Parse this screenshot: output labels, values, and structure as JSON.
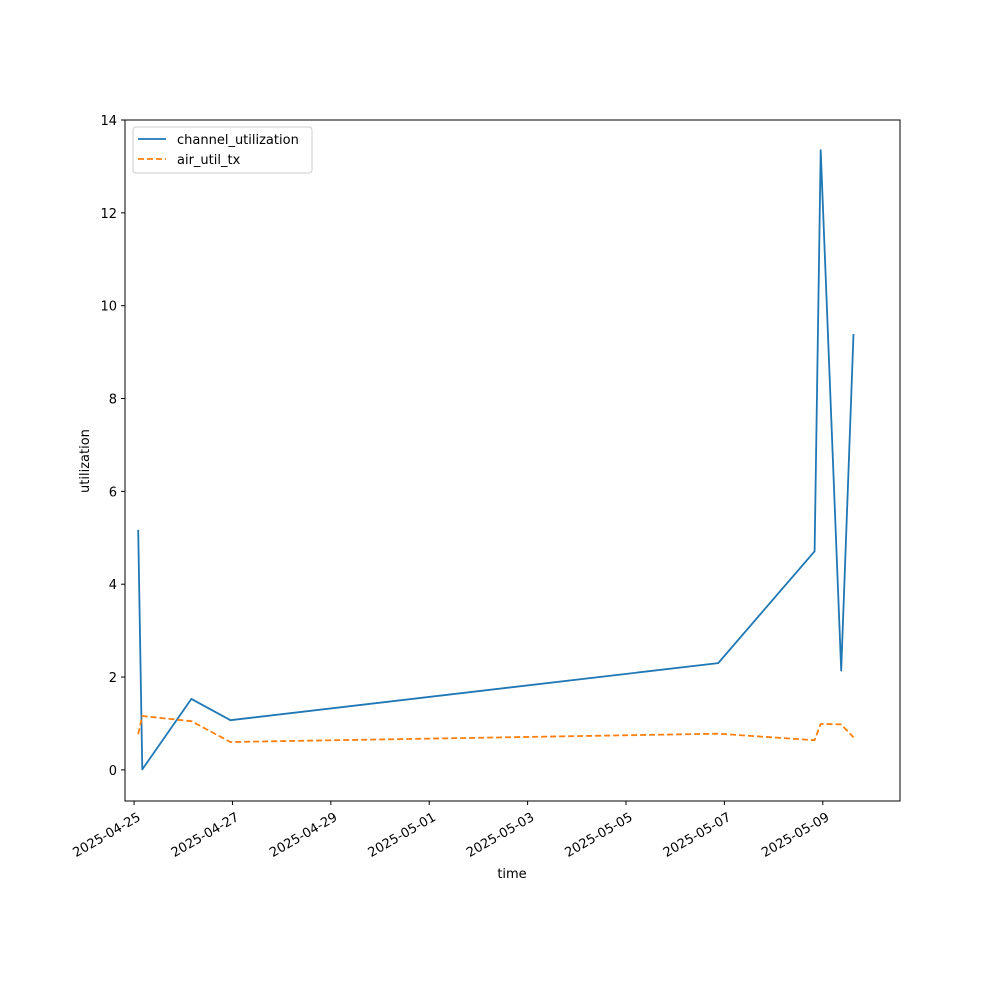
{
  "chart_data": {
    "type": "line",
    "title": "",
    "xlabel": "time",
    "ylabel": "utilization",
    "x_type": "date",
    "xlim": [
      "2025-04-24T19:35",
      "2025-05-10T13:40"
    ],
    "ylim": [
      -0.67,
      14
    ],
    "x_ticks": [
      "2025-04-25",
      "2025-04-27",
      "2025-04-29",
      "2025-05-01",
      "2025-05-03",
      "2025-05-05",
      "2025-05-07",
      "2025-05-09"
    ],
    "y_ticks": [
      0,
      2,
      4,
      6,
      8,
      10,
      12,
      14
    ],
    "grid": false,
    "legend_position": "top-left",
    "series": [
      {
        "name": "channel_utilization",
        "color": "#1f77b4",
        "style": "solid",
        "points": [
          {
            "x": "2025-04-25T02:00",
            "y": 5.17
          },
          {
            "x": "2025-04-25T04:00",
            "y": 0.01
          },
          {
            "x": "2025-04-26T04:00",
            "y": 1.53
          },
          {
            "x": "2025-04-26T23:00",
            "y": 1.07
          },
          {
            "x": "2025-05-06T21:00",
            "y": 2.3
          },
          {
            "x": "2025-05-08T20:00",
            "y": 4.71
          },
          {
            "x": "2025-05-08T23:00",
            "y": 13.35
          },
          {
            "x": "2025-05-09T09:00",
            "y": 2.14
          },
          {
            "x": "2025-05-09T15:00",
            "y": 9.39
          }
        ]
      },
      {
        "name": "air_util_tx",
        "color": "#ff7f0e",
        "style": "dashed",
        "points": [
          {
            "x": "2025-04-25T02:00",
            "y": 0.77
          },
          {
            "x": "2025-04-25T04:00",
            "y": 1.16
          },
          {
            "x": "2025-04-26T04:00",
            "y": 1.05
          },
          {
            "x": "2025-04-26T23:00",
            "y": 0.6
          },
          {
            "x": "2025-05-06T21:00",
            "y": 0.78
          },
          {
            "x": "2025-05-08T20:00",
            "y": 0.64
          },
          {
            "x": "2025-05-08T23:00",
            "y": 0.99
          },
          {
            "x": "2025-05-09T09:00",
            "y": 0.98
          },
          {
            "x": "2025-05-09T15:00",
            "y": 0.7
          }
        ]
      }
    ]
  }
}
